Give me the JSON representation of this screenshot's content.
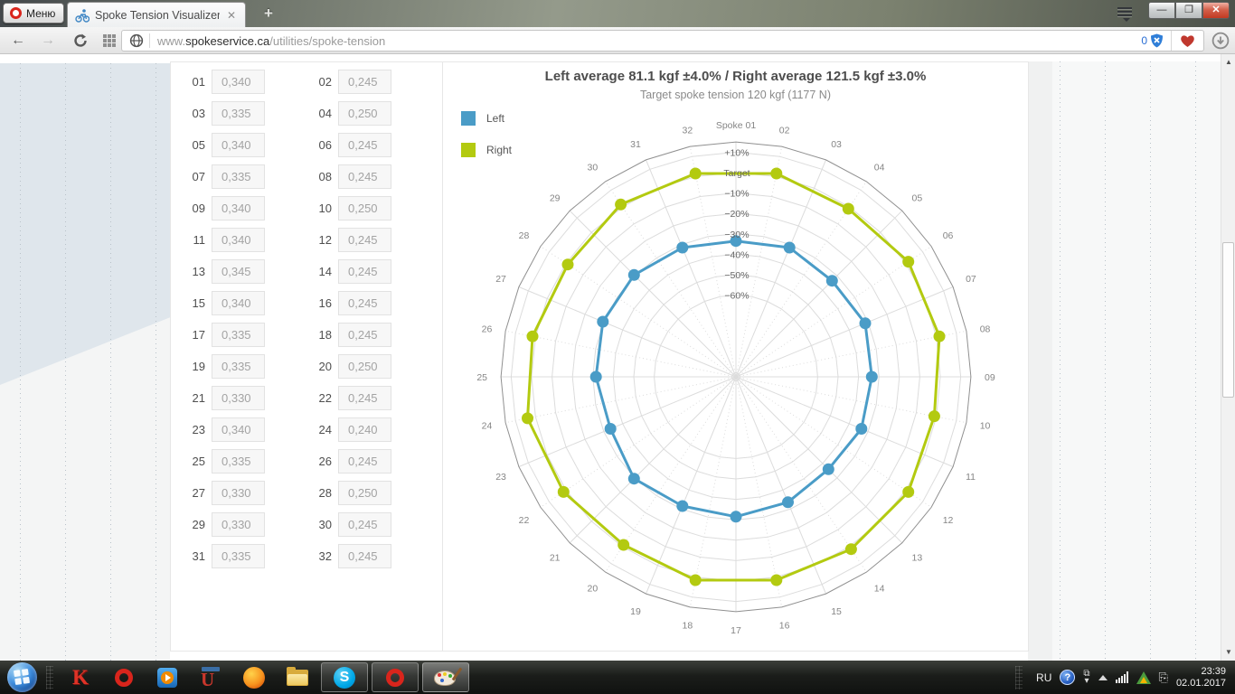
{
  "browser": {
    "menu_button_label": "Меню",
    "tab_title": "Spoke Tension Visualizer |",
    "tab_close": "✕",
    "new_tab_label": "+",
    "window_controls": {
      "minimize": "—",
      "restore": "❐",
      "close": "✕"
    },
    "url": {
      "prefix": "www.",
      "domain": "spokeservice.ca",
      "path": "/utilities/spoke-tension"
    },
    "badge_count": "0"
  },
  "page": {
    "inputs": [
      {
        "spoke": "01",
        "value": "0,340"
      },
      {
        "spoke": "02",
        "value": "0,245"
      },
      {
        "spoke": "03",
        "value": "0,335"
      },
      {
        "spoke": "04",
        "value": "0,250"
      },
      {
        "spoke": "05",
        "value": "0,340"
      },
      {
        "spoke": "06",
        "value": "0,245"
      },
      {
        "spoke": "07",
        "value": "0,335"
      },
      {
        "spoke": "08",
        "value": "0,245"
      },
      {
        "spoke": "09",
        "value": "0,340"
      },
      {
        "spoke": "10",
        "value": "0,250"
      },
      {
        "spoke": "11",
        "value": "0,340"
      },
      {
        "spoke": "12",
        "value": "0,245"
      },
      {
        "spoke": "13",
        "value": "0,345"
      },
      {
        "spoke": "14",
        "value": "0,245"
      },
      {
        "spoke": "15",
        "value": "0,340"
      },
      {
        "spoke": "16",
        "value": "0,245"
      },
      {
        "spoke": "17",
        "value": "0,335"
      },
      {
        "spoke": "18",
        "value": "0,245"
      },
      {
        "spoke": "19",
        "value": "0,335"
      },
      {
        "spoke": "20",
        "value": "0,250"
      },
      {
        "spoke": "21",
        "value": "0,330"
      },
      {
        "spoke": "22",
        "value": "0,245"
      },
      {
        "spoke": "23",
        "value": "0,340"
      },
      {
        "spoke": "24",
        "value": "0,240"
      },
      {
        "spoke": "25",
        "value": "0,335"
      },
      {
        "spoke": "26",
        "value": "0,245"
      },
      {
        "spoke": "27",
        "value": "0,330"
      },
      {
        "spoke": "28",
        "value": "0,250"
      },
      {
        "spoke": "29",
        "value": "0,330"
      },
      {
        "spoke": "30",
        "value": "0,245"
      },
      {
        "spoke": "31",
        "value": "0,335"
      },
      {
        "spoke": "32",
        "value": "0,245"
      }
    ],
    "chart_data": {
      "type": "radar",
      "title": "Left average 81.1 kgf ±4.0% / Right average 121.5 kgf ±3.0%",
      "subtitle": "Target spoke tension 120 kgf (1177 N)",
      "axis": {
        "unit": "percent of target tension",
        "outer_percent": 15,
        "rings_percent": [
          10,
          0,
          -10,
          -20,
          -30,
          -40,
          -50,
          -60
        ],
        "ring_labels": [
          "+10%",
          "Target",
          "−10%",
          "−20%",
          "−30%",
          "−40%",
          "−50%",
          "−60%"
        ],
        "center_percent": -100,
        "spoke_count": 32,
        "first_spoke_label": "Spoke 01"
      },
      "legend": [
        {
          "label": "Left",
          "color": "#4a9cc7"
        },
        {
          "label": "Right",
          "color": "#b3ca10"
        }
      ],
      "series": [
        {
          "name": "Left",
          "color": "#4a9cc7",
          "spokes": [
            1,
            3,
            5,
            7,
            9,
            11,
            13,
            15,
            17,
            19,
            21,
            23,
            25,
            27,
            29,
            31
          ],
          "percent": [
            -33.5,
            -31.5,
            -33.5,
            -31.5,
            -33.5,
            -33.5,
            -36,
            -33.5,
            -31.5,
            -31.5,
            -29.5,
            -33.5,
            -31.5,
            -29.5,
            -29.5,
            -31.5
          ]
        },
        {
          "name": "Right",
          "color": "#b3ca10",
          "spokes": [
            2,
            4,
            6,
            8,
            10,
            12,
            14,
            16,
            18,
            20,
            22,
            24,
            26,
            28,
            30,
            32
          ],
          "percent": [
            1.5,
            -1,
            1.5,
            1.5,
            -1,
            1.5,
            1.5,
            1.5,
            1.5,
            -1,
            1.5,
            4,
            1.5,
            -1,
            1.5,
            1.5
          ]
        }
      ]
    }
  },
  "taskbar": {
    "language": "RU",
    "time": "23:39",
    "date": "02.01.2017",
    "icons": [
      "start-orb",
      "kaspersky",
      "opera",
      "media-player",
      "torrent",
      "firefox",
      "explorer",
      "skype",
      "opera-window",
      "paint"
    ]
  }
}
